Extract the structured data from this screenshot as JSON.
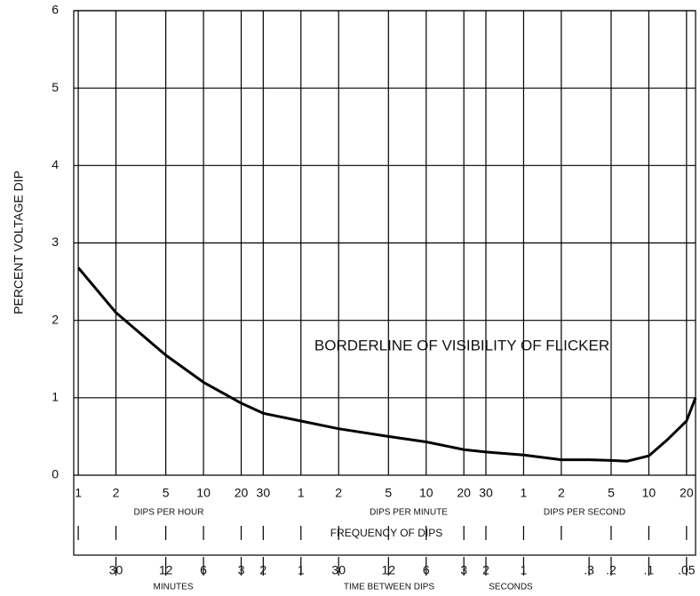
{
  "chart_data": {
    "type": "line",
    "y_label": "PERCENT VOLTAGE DIP",
    "annotation": "BORDERLINE OF VISIBILITY OF FLICKER",
    "x_label": "FREQUENCY OF DIPS",
    "x2_label": "TIME BETWEEN DIPS",
    "x_groups": [
      "DIPS PER HOUR",
      "DIPS PER MINUTE",
      "DIPS PER SECOND"
    ],
    "x2_groups": [
      "MINUTES",
      "SECONDS"
    ],
    "x_log": true,
    "grid": true,
    "xlim": [
      0.92,
      85000
    ],
    "ylim": [
      0,
      6
    ],
    "yticks": [
      0,
      1,
      2,
      3,
      4,
      5,
      6
    ],
    "xticks": [
      1,
      2,
      5,
      10,
      20,
      30,
      {
        "value": 60,
        "label": "1"
      },
      {
        "value": 120,
        "label": "2"
      },
      {
        "value": 300,
        "label": "5"
      },
      {
        "value": 600,
        "label": "10"
      },
      {
        "value": 1200,
        "label": "20"
      },
      {
        "value": 1800,
        "label": "30"
      },
      {
        "value": 3600,
        "label": "1"
      },
      {
        "value": 7200,
        "label": "2"
      },
      {
        "value": 18000,
        "label": "5"
      },
      {
        "value": 36000,
        "label": "10"
      },
      {
        "value": 72000,
        "label": "20"
      }
    ],
    "x2ticks": [
      {
        "value": 2,
        "label": "30"
      },
      {
        "value": 5,
        "label": "12"
      },
      {
        "value": 10,
        "label": "6"
      },
      {
        "value": 20,
        "label": "3"
      },
      {
        "value": 30,
        "label": "2"
      },
      {
        "value": 60,
        "label": "1"
      },
      {
        "value": 120,
        "label": "30"
      },
      {
        "value": 300,
        "label": "12"
      },
      {
        "value": 600,
        "label": "6"
      },
      {
        "value": 1200,
        "label": "3"
      },
      {
        "value": 1800,
        "label": "2"
      },
      {
        "value": 3600,
        "label": "1"
      },
      {
        "value": 12000,
        "label": ".3"
      },
      {
        "value": 18000,
        "label": ".2"
      },
      {
        "value": 36000,
        "label": ".1"
      },
      {
        "value": 72000,
        "label": ".05"
      }
    ],
    "x": [
      1,
      2,
      5,
      10,
      20,
      30,
      60,
      120,
      300,
      600,
      1200,
      1800,
      3600,
      7200,
      12000,
      18000,
      24000,
      36000,
      50000,
      72000,
      85000
    ],
    "series": [
      {
        "name": "Borderline of visibility",
        "color": "#000000",
        "values": [
          2.68,
          2.1,
          1.55,
          1.2,
          0.93,
          0.8,
          0.7,
          0.6,
          0.5,
          0.43,
          0.33,
          0.3,
          0.26,
          0.2,
          0.2,
          0.19,
          0.18,
          0.25,
          0.45,
          0.7,
          1.0
        ]
      }
    ]
  }
}
